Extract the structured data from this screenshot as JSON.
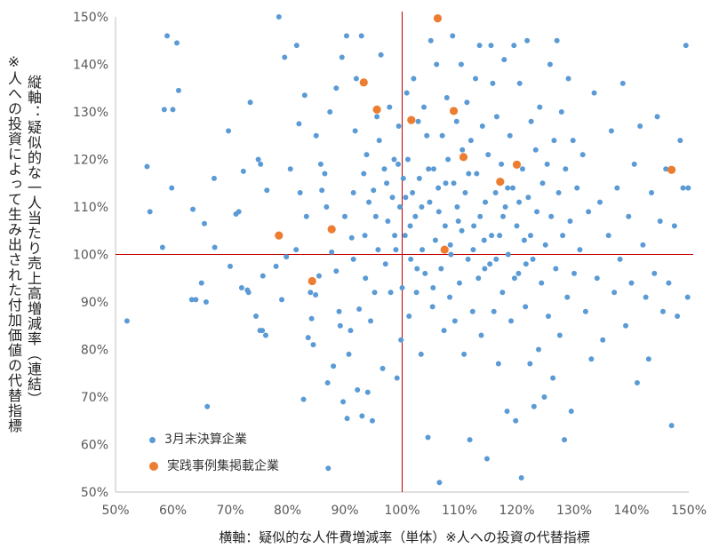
{
  "chart_data": {
    "type": "scatter",
    "xlabel": "横軸：疑似的な人件費増減率（単体）※人への投資の代替指標",
    "ylabel_line1": "※人への投資によって生み出された付加価値の代替指標",
    "ylabel_line2": "縦軸：疑似的な一人当たり売上高増減率（連結）",
    "xlim": [
      50,
      150
    ],
    "ylim": [
      50,
      150
    ],
    "x_ticks": [
      "50%",
      "60%",
      "70%",
      "80%",
      "90%",
      "100%",
      "110%",
      "120%",
      "130%",
      "140%",
      "150%"
    ],
    "y_ticks": [
      "150%",
      "140%",
      "130%",
      "120%",
      "110%",
      "100%",
      "90%",
      "80%",
      "70%",
      "60%",
      "50%"
    ],
    "reference_lines": {
      "x": 100,
      "y": 100
    },
    "grid": "none",
    "legend_placement": "bottom-left",
    "series": [
      {
        "name": "3月末決算企業",
        "color": "#5b9bd5",
        "points": [
          [
            52,
            86
          ],
          [
            55.5,
            118.5
          ],
          [
            56,
            109
          ],
          [
            58.2,
            101.5
          ],
          [
            58.5,
            130.5
          ],
          [
            59,
            146
          ],
          [
            59.8,
            114
          ],
          [
            60,
            130.5
          ],
          [
            60.7,
            144.5
          ],
          [
            61,
            134.5
          ],
          [
            63.3,
            90.5
          ],
          [
            63.5,
            109.5
          ],
          [
            64,
            90.5
          ],
          [
            65,
            94
          ],
          [
            65.5,
            106.5
          ],
          [
            65.8,
            90
          ],
          [
            66,
            68
          ],
          [
            67.2,
            116
          ],
          [
            67.3,
            101.5
          ],
          [
            69.7,
            126
          ],
          [
            70,
            97.5
          ],
          [
            71,
            108.5
          ],
          [
            71.5,
            109
          ],
          [
            72,
            93
          ],
          [
            72.3,
            117.5
          ],
          [
            73,
            92.5
          ],
          [
            73.2,
            92
          ],
          [
            73.5,
            132
          ],
          [
            74.5,
            87
          ],
          [
            74.9,
            120
          ],
          [
            75.2,
            84
          ],
          [
            75.3,
            119
          ],
          [
            75.6,
            84
          ],
          [
            75.7,
            95.5
          ],
          [
            76.2,
            83
          ],
          [
            76.4,
            113.5
          ],
          [
            78,
            97.5
          ],
          [
            78.5,
            150
          ],
          [
            79,
            90.5
          ],
          [
            79.5,
            141.5
          ],
          [
            79.8,
            99.5
          ],
          [
            80.5,
            118
          ],
          [
            81.5,
            101
          ],
          [
            81.6,
            144
          ],
          [
            82,
            127.5
          ],
          [
            82.2,
            113
          ],
          [
            82.8,
            69.5
          ],
          [
            83,
            133.5
          ],
          [
            83.3,
            108
          ],
          [
            83.6,
            82.5
          ],
          [
            84,
            92
          ],
          [
            84.5,
            81
          ],
          [
            84.2,
            86.5
          ],
          [
            84.9,
            91.5
          ],
          [
            85,
            125
          ],
          [
            85.5,
            95.5
          ],
          [
            85.8,
            119
          ],
          [
            86,
            113.5
          ],
          [
            86.5,
            117
          ],
          [
            86.8,
            110
          ],
          [
            87,
            73
          ],
          [
            87.1,
            55
          ],
          [
            87.4,
            130
          ],
          [
            87.7,
            100.5
          ],
          [
            88,
            76.5
          ],
          [
            88.5,
            96.5
          ],
          [
            89,
            88
          ],
          [
            89.2,
            85
          ],
          [
            89.5,
            141.5
          ],
          [
            89.7,
            69
          ],
          [
            90,
            108
          ],
          [
            90.3,
            146
          ],
          [
            90.4,
            65.5
          ],
          [
            90.7,
            79
          ],
          [
            91,
            84
          ],
          [
            91.2,
            103.5
          ],
          [
            91.5,
            99
          ],
          [
            91.8,
            126
          ],
          [
            92,
            137
          ],
          [
            92.2,
            71.5
          ],
          [
            92.5,
            88.5
          ],
          [
            92.9,
            146
          ],
          [
            93,
            66
          ],
          [
            93.3,
            117
          ],
          [
            93.5,
            104
          ],
          [
            93.8,
            121
          ],
          [
            94,
            71
          ],
          [
            94.2,
            111
          ],
          [
            94.5,
            86
          ],
          [
            94.8,
            65
          ],
          [
            95,
            113.5
          ],
          [
            95.2,
            92
          ],
          [
            95.6,
            129
          ],
          [
            95.8,
            101
          ],
          [
            96,
            124
          ],
          [
            96.3,
            142
          ],
          [
            96.6,
            76
          ],
          [
            96.9,
            118
          ],
          [
            97.1,
            98
          ],
          [
            97.5,
            107
          ],
          [
            97.8,
            131
          ],
          [
            98,
            92
          ],
          [
            98.3,
            112
          ],
          [
            98.6,
            120
          ],
          [
            98.9,
            101
          ],
          [
            99.1,
            74
          ],
          [
            99.4,
            127
          ],
          [
            99.6,
            110
          ],
          [
            99.8,
            82
          ],
          [
            100,
            93
          ],
          [
            100.2,
            116
          ],
          [
            100.5,
            104
          ],
          [
            100.8,
            134
          ],
          [
            101,
            120
          ],
          [
            101.2,
            87
          ],
          [
            101.5,
            99
          ],
          [
            101.8,
            113
          ],
          [
            102,
            137
          ],
          [
            102.3,
            108
          ],
          [
            102.5,
            92
          ],
          [
            102.8,
            128
          ],
          [
            103,
            116
          ],
          [
            103.3,
            79
          ],
          [
            103.5,
            101
          ],
          [
            103.8,
            131
          ],
          [
            104,
            96
          ],
          [
            104.3,
            125
          ],
          [
            104.5,
            61.5
          ],
          [
            104.8,
            111
          ],
          [
            105,
            145
          ],
          [
            105.3,
            89
          ],
          [
            105.5,
            118
          ],
          [
            105.8,
            103
          ],
          [
            106,
            140
          ],
          [
            106.3,
            114
          ],
          [
            106.5,
            52
          ],
          [
            106.8,
            97
          ],
          [
            107,
            125
          ],
          [
            107.3,
            84
          ],
          [
            107.5,
            106
          ],
          [
            107.8,
            133
          ],
          [
            108,
            120
          ],
          [
            108.3,
            91
          ],
          [
            108.5,
            100
          ],
          [
            108.8,
            146
          ],
          [
            109,
            115
          ],
          [
            109.2,
            86
          ],
          [
            109.5,
            128
          ],
          [
            109.8,
            107
          ],
          [
            110,
            94
          ],
          [
            110.3,
            140
          ],
          [
            110.5,
            122
          ],
          [
            110.8,
            79
          ],
          [
            111,
            113
          ],
          [
            111.3,
            132
          ],
          [
            111.5,
            99
          ],
          [
            111.8,
            61
          ],
          [
            112,
            124
          ],
          [
            112.3,
            88
          ],
          [
            112.5,
            106
          ],
          [
            112.8,
            137
          ],
          [
            113,
            117
          ],
          [
            113.3,
            95
          ],
          [
            113.5,
            144
          ],
          [
            113.8,
            83
          ],
          [
            114,
            127
          ],
          [
            114.3,
            103
          ],
          [
            114.5,
            111
          ],
          [
            114.8,
            57
          ],
          [
            115,
            121
          ],
          [
            115.3,
            98
          ],
          [
            115.5,
            144
          ],
          [
            115.8,
            136
          ],
          [
            116,
            88
          ],
          [
            116.3,
            113
          ],
          [
            116.5,
            129
          ],
          [
            116.8,
            77
          ],
          [
            117,
            104
          ],
          [
            117.3,
            119
          ],
          [
            117.5,
            92
          ],
          [
            117.8,
            141
          ],
          [
            118,
            110
          ],
          [
            118.3,
            67
          ],
          [
            118.5,
            100
          ],
          [
            118.8,
            125
          ],
          [
            119,
            86
          ],
          [
            119.3,
            114
          ],
          [
            119.5,
            144
          ],
          [
            119.8,
            65
          ],
          [
            120,
            106
          ],
          [
            120.3,
            96
          ],
          [
            120.5,
            136
          ],
          [
            120.8,
            53
          ],
          [
            121,
            118
          ],
          [
            121.3,
            103
          ],
          [
            121.5,
            89
          ],
          [
            121.8,
            145
          ],
          [
            122,
            112
          ],
          [
            122.3,
            77
          ],
          [
            122.5,
            128
          ],
          [
            122.8,
            99
          ],
          [
            123,
            68
          ],
          [
            123.3,
            122
          ],
          [
            123.5,
            109
          ],
          [
            123.8,
            80
          ],
          [
            124,
            131
          ],
          [
            124.3,
            94
          ],
          [
            124.5,
            115
          ],
          [
            124.8,
            70
          ],
          [
            125,
            102
          ],
          [
            125.3,
            119
          ],
          [
            125.5,
            87
          ],
          [
            125.8,
            140
          ],
          [
            126,
            108
          ],
          [
            126.3,
            74
          ],
          [
            126.5,
            124
          ],
          [
            126.8,
            97
          ],
          [
            127,
            145
          ],
          [
            127.3,
            113
          ],
          [
            127.5,
            83
          ],
          [
            127.8,
            130
          ],
          [
            128,
            104
          ],
          [
            128.3,
            61
          ],
          [
            128.5,
            118
          ],
          [
            128.8,
            91
          ],
          [
            129,
            137
          ],
          [
            129.3,
            107
          ],
          [
            129.5,
            67
          ],
          [
            129.8,
            124
          ],
          [
            130,
            96
          ],
          [
            130.5,
            114
          ],
          [
            131,
            101
          ],
          [
            131.5,
            121
          ],
          [
            132,
            88
          ],
          [
            132.5,
            109
          ],
          [
            133,
            78
          ],
          [
            133.5,
            134
          ],
          [
            134,
            95
          ],
          [
            134.5,
            111
          ],
          [
            135,
            82
          ],
          [
            136,
            104
          ],
          [
            136.5,
            126
          ],
          [
            137,
            92
          ],
          [
            137.5,
            114
          ],
          [
            138,
            99
          ],
          [
            138.5,
            136
          ],
          [
            139,
            85
          ],
          [
            139.5,
            108
          ],
          [
            140,
            94
          ],
          [
            140.5,
            119
          ],
          [
            141,
            73
          ],
          [
            141.5,
            127
          ],
          [
            142,
            102
          ],
          [
            142.5,
            91
          ],
          [
            143,
            78
          ],
          [
            143.5,
            113
          ],
          [
            144,
            96
          ],
          [
            144.5,
            129
          ],
          [
            145,
            107
          ],
          [
            145.5,
            88
          ],
          [
            146,
            118
          ],
          [
            146.5,
            94
          ],
          [
            147,
            64
          ],
          [
            147.5,
            106
          ],
          [
            148,
            87
          ],
          [
            148.5,
            124
          ],
          [
            149,
            114
          ],
          [
            149.5,
            144
          ],
          [
            149.8,
            91
          ],
          [
            149.9,
            114
          ],
          [
            88.5,
            135
          ],
          [
            91.5,
            113
          ],
          [
            93.6,
            95
          ],
          [
            95.4,
            108
          ],
          [
            97.3,
            115
          ],
          [
            98.7,
            104
          ],
          [
            99.3,
            119
          ],
          [
            100.6,
            112
          ],
          [
            101.4,
            106
          ],
          [
            102.6,
            97
          ],
          [
            103.4,
            110
          ],
          [
            104.6,
            118
          ],
          [
            105.4,
            93
          ],
          [
            106.4,
            109
          ],
          [
            107.6,
            115
          ],
          [
            108.4,
            102
          ],
          [
            109.6,
            110
          ],
          [
            110.4,
            105
          ],
          [
            111.6,
            117
          ],
          [
            112.4,
            101
          ],
          [
            113.6,
            108
          ],
          [
            114.4,
            97
          ],
          [
            115.6,
            104
          ],
          [
            116.4,
            99
          ],
          [
            117.6,
            108
          ],
          [
            118.4,
            114
          ],
          [
            119.6,
            95
          ],
          [
            120.4,
            111
          ],
          [
            121.6,
            98
          ],
          [
            122.4,
            104
          ]
        ]
      },
      {
        "name": "実践事例集掲載企業",
        "color": "#ed7d31",
        "points": [
          [
            78.5,
            104
          ],
          [
            84.3,
            94.4
          ],
          [
            87.7,
            105.3
          ],
          [
            93.3,
            136.2
          ],
          [
            95.6,
            130.5
          ],
          [
            101.6,
            128.3
          ],
          [
            106.2,
            149.7
          ],
          [
            107.4,
            101
          ],
          [
            109,
            130.2
          ],
          [
            110.7,
            120.5
          ],
          [
            117.1,
            115.3
          ],
          [
            120,
            118.9
          ],
          [
            147,
            117.8
          ]
        ]
      }
    ]
  },
  "colors": {
    "axis": "#bfbfbf",
    "reference_line": "#c00000",
    "tick_label": "#595959"
  }
}
